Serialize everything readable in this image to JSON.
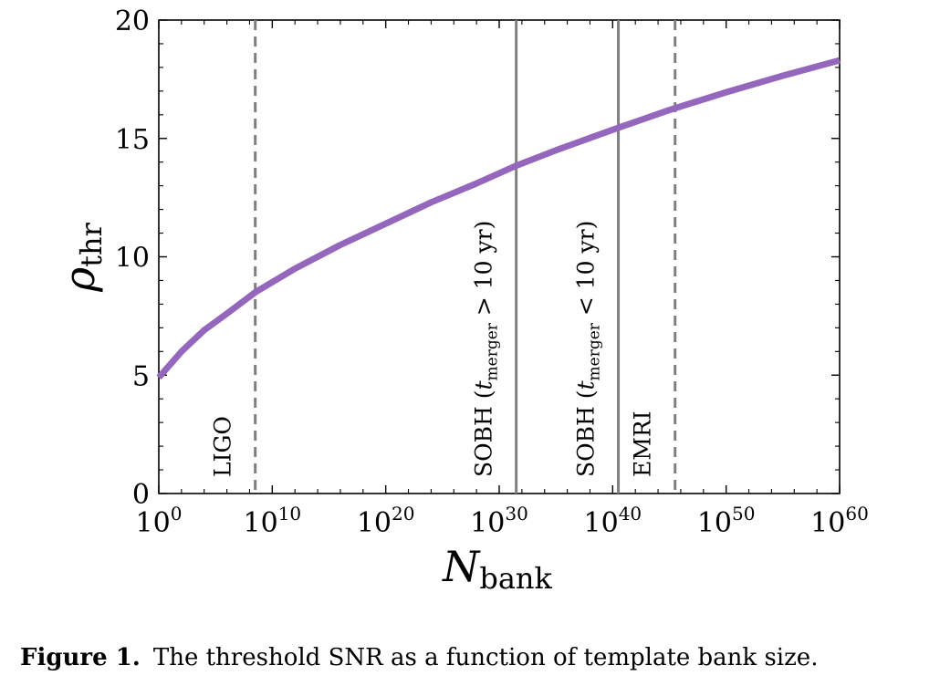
{
  "chart_data": {
    "type": "line",
    "xlabel": {
      "base": "N",
      "subscript": "bank"
    },
    "ylabel": {
      "base": "ρ",
      "subscript": "thr"
    },
    "xscale": "log",
    "xlim_exponent": [
      0,
      60
    ],
    "ylim": [
      0,
      20
    ],
    "x_ticks": [
      {
        "base": "10",
        "exp": "0"
      },
      {
        "base": "10",
        "exp": "10"
      },
      {
        "base": "10",
        "exp": "20"
      },
      {
        "base": "10",
        "exp": "30"
      },
      {
        "base": "10",
        "exp": "40"
      },
      {
        "base": "10",
        "exp": "50"
      },
      {
        "base": "10",
        "exp": "60"
      }
    ],
    "y_ticks": [
      "0",
      "5",
      "10",
      "15",
      "20"
    ],
    "series": [
      {
        "name": "rho_thr",
        "color": "#9467bd",
        "x_exponent": [
          0,
          2,
          4,
          6,
          8.5,
          12,
          16,
          20,
          24,
          28,
          31.5,
          35,
          40.5,
          45,
          50,
          55,
          60
        ],
        "y": [
          4.9,
          6.0,
          6.9,
          7.6,
          8.5,
          9.5,
          10.5,
          11.4,
          12.3,
          13.1,
          13.85,
          14.5,
          15.45,
          16.2,
          16.95,
          17.65,
          18.3
        ]
      }
    ],
    "vlines": [
      {
        "x_exponent": 8.5,
        "style": "dashed",
        "label": "LIGO"
      },
      {
        "x_exponent": 31.5,
        "style": "solid",
        "label": "SOBH (t_merger > 10 yr)",
        "label_main": "SOBH (",
        "label_sub_base": "t",
        "label_sub": "merger",
        "label_tail": " > 10 yr)"
      },
      {
        "x_exponent": 40.5,
        "style": "solid",
        "label": "SOBH (t_merger < 10 yr)",
        "label_main": "SOBH (",
        "label_sub_base": "t",
        "label_sub": "merger",
        "label_tail": " < 10 yr)"
      },
      {
        "x_exponent": 45.5,
        "style": "dashed",
        "label": "EMRI"
      }
    ]
  },
  "caption": {
    "label": "Figure 1.",
    "text": "The threshold SNR as a function of template bank size."
  },
  "colors": {
    "curve": "#9467bd",
    "vline": "#7f7f7f"
  }
}
